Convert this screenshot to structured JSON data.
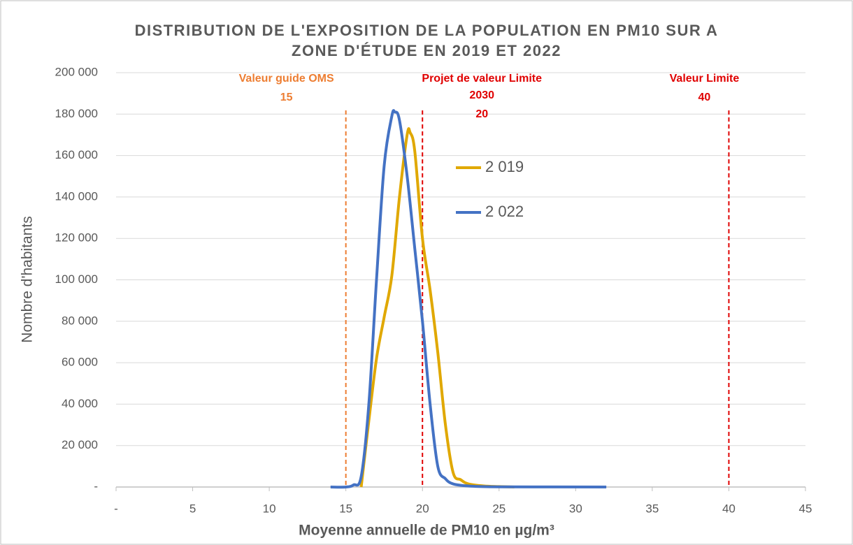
{
  "chart_data": {
    "type": "line",
    "title": [
      "DISTRIBUTION DE L'EXPOSITION DE LA POPULATION EN PM10 SUR A",
      "ZONE D'ÉTUDE EN 2019 ET 2022"
    ],
    "x_label": "Moyenne annuelle de PM10 en µg/m³",
    "y_label": "Nombre d'habitants",
    "xlim": [
      0,
      45
    ],
    "xticks": [
      {
        "value": 0,
        "label": "-"
      },
      5,
      10,
      15,
      20,
      25,
      30,
      35,
      40,
      45
    ],
    "ylim": [
      0,
      200000
    ],
    "yticks": [
      {
        "value": 0,
        "label": "-"
      },
      {
        "value": 20000,
        "label": "20 000"
      },
      {
        "value": 40000,
        "label": "40 000"
      },
      {
        "value": 60000,
        "label": "60 000"
      },
      {
        "value": 80000,
        "label": "80 000"
      },
      {
        "value": 100000,
        "label": "100 000"
      },
      {
        "value": 120000,
        "label": "120 000"
      },
      {
        "value": 140000,
        "label": "140 000"
      },
      {
        "value": 160000,
        "label": "160 000"
      },
      {
        "value": 180000,
        "label": "180 000"
      },
      {
        "value": 200000,
        "label": "200 000"
      }
    ],
    "grid": true,
    "series": [
      {
        "name": "2 019",
        "color": "#e0a800",
        "x": [
          16,
          16.5,
          17,
          17.5,
          18,
          18.5,
          19,
          19.2,
          19.5,
          20,
          20.5,
          21,
          21.5,
          22,
          22.5,
          23,
          24,
          25,
          26
        ],
        "values": [
          0,
          32000,
          62000,
          82000,
          102000,
          140000,
          170000,
          171000,
          162000,
          120000,
          95000,
          65000,
          30000,
          7000,
          3500,
          1500,
          500,
          200,
          0
        ]
      },
      {
        "name": "2 022",
        "color": "#4472c4",
        "x": [
          14,
          15,
          15.5,
          16,
          16.5,
          17,
          17.5,
          18,
          18.2,
          18.5,
          19,
          19.5,
          20,
          20.5,
          21,
          21.5,
          22,
          23,
          25,
          32
        ],
        "values": [
          0,
          0,
          1000,
          5000,
          40000,
          100000,
          155000,
          179000,
          181000,
          177000,
          150000,
          115000,
          80000,
          40000,
          10000,
          4000,
          1500,
          500,
          100,
          0
        ]
      }
    ],
    "reference_lines": [
      {
        "lines": [
          "Valeur guide OMS"
        ],
        "value": 15,
        "color": "#ed7d31"
      },
      {
        "lines": [
          "Projet de valeur Limite",
          "2030"
        ],
        "value": 20,
        "color": "#e00000"
      },
      {
        "lines": [
          "Valeur Limite"
        ],
        "value": 40,
        "color": "#e00000"
      }
    ]
  }
}
